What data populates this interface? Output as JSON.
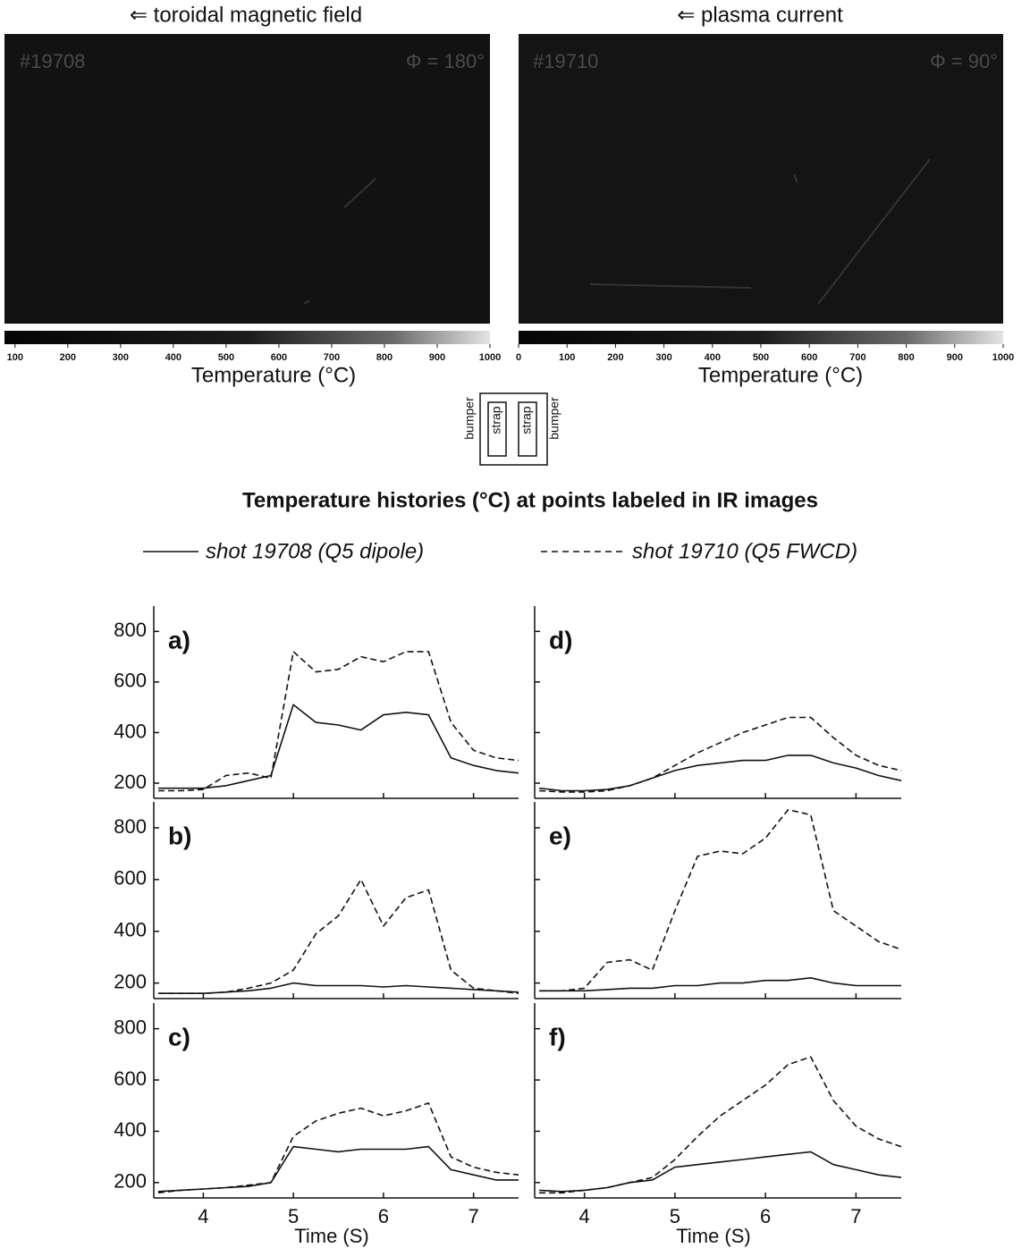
{
  "ir_images": [
    {
      "view": "⇐ toroidal magnetic field",
      "shot": "#19708",
      "angle": "Φ = 180°",
      "colorbar": {
        "lim": [
          80,
          1000
        ],
        "ticks": [
          100,
          200,
          300,
          400,
          500,
          600,
          700,
          800,
          900,
          1000
        ],
        "label": "Temperature (°C)"
      }
    },
    {
      "view": "⇐ plasma current",
      "shot": "#19710",
      "angle": "Φ = 90°",
      "colorbar": {
        "lim": [
          0,
          1000
        ],
        "ticks": [
          0,
          100,
          200,
          300,
          400,
          500,
          600,
          700,
          800,
          900,
          1000
        ],
        "label": "Temperature (°C)"
      }
    }
  ],
  "diagram": {
    "labels": [
      "bumper",
      "strap",
      "strap",
      "bumper"
    ]
  },
  "figure_title": "Temperature histories (°C) at points labeled in IR images",
  "chart_data": [
    {
      "type": "line",
      "label": "a)",
      "x": [
        3.5,
        3.75,
        4,
        4.25,
        4.5,
        4.75,
        5,
        5.25,
        5.5,
        5.75,
        6,
        6.25,
        6.5,
        6.75,
        7,
        7.25,
        7.5
      ],
      "xlim": [
        3.45,
        7.5
      ],
      "xticks": [
        4,
        5,
        6,
        7
      ],
      "xtick_labels": false,
      "ylim": [
        140,
        900
      ],
      "yticks": [
        200,
        400,
        600,
        800
      ],
      "ytick_labels": true,
      "series": [
        {
          "name": "shot 19708 (Q5 dipole)",
          "color": "#111111",
          "dash": false,
          "values": [
            180,
            180,
            180,
            190,
            210,
            230,
            510,
            440,
            430,
            410,
            470,
            480,
            470,
            300,
            270,
            250,
            240
          ]
        },
        {
          "name": "shot 19710 (Q5 FWCD)",
          "color": "#111111",
          "dash": true,
          "values": [
            170,
            170,
            175,
            230,
            240,
            220,
            720,
            640,
            650,
            700,
            680,
            720,
            720,
            440,
            330,
            300,
            290
          ]
        }
      ]
    },
    {
      "type": "line",
      "label": "b)",
      "x": [
        3.5,
        3.75,
        4,
        4.25,
        4.5,
        4.75,
        5,
        5.25,
        5.5,
        5.75,
        6,
        6.25,
        6.5,
        6.75,
        7,
        7.25,
        7.5
      ],
      "xlim": [
        3.45,
        7.5
      ],
      "xticks": [
        4,
        5,
        6,
        7
      ],
      "xtick_labels": false,
      "ylim": [
        140,
        900
      ],
      "yticks": [
        200,
        400,
        600,
        800
      ],
      "ytick_labels": true,
      "series": [
        {
          "name": "shot 19708 (Q5 dipole)",
          "color": "#111111",
          "dash": false,
          "values": [
            160,
            160,
            160,
            165,
            170,
            180,
            200,
            190,
            190,
            190,
            185,
            190,
            185,
            180,
            175,
            170,
            165
          ]
        },
        {
          "name": "shot 19710 (Q5 FWCD)",
          "color": "#111111",
          "dash": true,
          "values": [
            160,
            160,
            160,
            165,
            180,
            200,
            250,
            390,
            460,
            600,
            420,
            530,
            560,
            250,
            180,
            170,
            160
          ]
        }
      ]
    },
    {
      "type": "line",
      "label": "c)",
      "x": [
        3.5,
        3.75,
        4,
        4.25,
        4.5,
        4.75,
        5,
        5.25,
        5.5,
        5.75,
        6,
        6.25,
        6.5,
        6.75,
        7,
        7.25,
        7.5
      ],
      "xlim": [
        3.45,
        7.5
      ],
      "xticks": [
        4,
        5,
        6,
        7
      ],
      "xtick_labels": true,
      "xlabel": "Time (S)",
      "ylim": [
        140,
        900
      ],
      "yticks": [
        200,
        400,
        600,
        800
      ],
      "ytick_labels": true,
      "series": [
        {
          "name": "shot 19708 (Q5 dipole)",
          "color": "#111111",
          "dash": false,
          "values": [
            165,
            170,
            175,
            180,
            185,
            200,
            340,
            330,
            320,
            330,
            330,
            330,
            340,
            250,
            230,
            210,
            210
          ]
        },
        {
          "name": "shot 19710 (Q5 FWCD)",
          "color": "#111111",
          "dash": true,
          "values": [
            160,
            170,
            175,
            180,
            190,
            200,
            380,
            440,
            470,
            490,
            460,
            480,
            510,
            300,
            260,
            240,
            230
          ]
        }
      ]
    },
    {
      "type": "line",
      "label": "d)",
      "x": [
        3.5,
        3.75,
        4,
        4.25,
        4.5,
        4.75,
        5,
        5.25,
        5.5,
        5.75,
        6,
        6.25,
        6.5,
        6.75,
        7,
        7.25,
        7.5
      ],
      "xlim": [
        3.45,
        7.5
      ],
      "xticks": [
        4,
        5,
        6,
        7
      ],
      "xtick_labels": false,
      "ylim": [
        140,
        900
      ],
      "yticks": [
        200,
        400,
        600,
        800
      ],
      "ytick_labels": false,
      "series": [
        {
          "name": "shot 19708 (Q5 dipole)",
          "color": "#111111",
          "dash": false,
          "values": [
            180,
            170,
            170,
            175,
            190,
            220,
            250,
            270,
            280,
            290,
            290,
            310,
            310,
            280,
            260,
            230,
            210
          ]
        },
        {
          "name": "shot 19710 (Q5 FWCD)",
          "color": "#111111",
          "dash": true,
          "values": [
            170,
            165,
            165,
            170,
            190,
            220,
            270,
            320,
            360,
            400,
            430,
            460,
            460,
            380,
            310,
            270,
            250
          ]
        }
      ]
    },
    {
      "type": "line",
      "label": "e)",
      "x": [
        3.5,
        3.75,
        4,
        4.25,
        4.5,
        4.75,
        5,
        5.25,
        5.5,
        5.75,
        6,
        6.25,
        6.5,
        6.75,
        7,
        7.25,
        7.5
      ],
      "xlim": [
        3.45,
        7.5
      ],
      "xticks": [
        4,
        5,
        6,
        7
      ],
      "xtick_labels": false,
      "ylim": [
        140,
        900
      ],
      "yticks": [
        200,
        400,
        600,
        800
      ],
      "ytick_labels": false,
      "series": [
        {
          "name": "shot 19708 (Q5 dipole)",
          "color": "#111111",
          "dash": false,
          "values": [
            170,
            170,
            170,
            175,
            180,
            180,
            190,
            190,
            200,
            200,
            210,
            210,
            220,
            200,
            190,
            190,
            190
          ]
        },
        {
          "name": "shot 19710 (Q5 FWCD)",
          "color": "#111111",
          "dash": true,
          "values": [
            170,
            170,
            180,
            280,
            290,
            250,
            480,
            690,
            710,
            700,
            760,
            870,
            850,
            480,
            420,
            360,
            330
          ]
        }
      ]
    },
    {
      "type": "line",
      "label": "f)",
      "x": [
        3.5,
        3.75,
        4,
        4.25,
        4.5,
        4.75,
        5,
        5.25,
        5.5,
        5.75,
        6,
        6.25,
        6.5,
        6.75,
        7,
        7.25,
        7.5
      ],
      "xlim": [
        3.45,
        7.5
      ],
      "xticks": [
        4,
        5,
        6,
        7
      ],
      "xtick_labels": true,
      "xlabel": "Time (S)",
      "ylim": [
        140,
        900
      ],
      "yticks": [
        200,
        400,
        600,
        800
      ],
      "ytick_labels": false,
      "series": [
        {
          "name": "shot 19708 (Q5 dipole)",
          "color": "#111111",
          "dash": false,
          "values": [
            170,
            165,
            170,
            180,
            200,
            210,
            260,
            270,
            280,
            290,
            300,
            310,
            320,
            270,
            250,
            230,
            220
          ]
        },
        {
          "name": "shot 19710 (Q5 FWCD)",
          "color": "#111111",
          "dash": true,
          "values": [
            160,
            160,
            170,
            180,
            200,
            220,
            290,
            380,
            460,
            520,
            580,
            660,
            690,
            520,
            420,
            370,
            340
          ]
        }
      ]
    }
  ]
}
